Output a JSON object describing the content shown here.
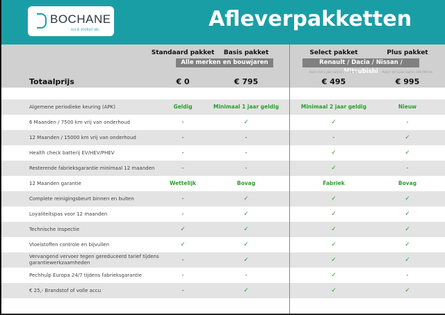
{
  "header": {
    "brand": "BOCHANE",
    "brand_tagline": "ALS JE VOORUIT WIL",
    "title": "Afleverpakketten",
    "brand_color": "#1a9ea6"
  },
  "columns": [
    {
      "name": "Standaard pakket",
      "price": "€ 0"
    },
    {
      "name": "Basis pakket",
      "price": "€ 795"
    },
    {
      "name": "Select pakket",
      "price": "€ 495",
      "note": "Auto's tot 1 jaar oud en 20.000 km"
    },
    {
      "name": "Plus pakket",
      "price": "€ 995",
      "note": "Auto's tot 5 jaar oud en 100.000 km"
    }
  ],
  "bands": {
    "left": "Alle merken en bouwjaren",
    "right": "Renault / Dacia / Nissan / Mitsubishi"
  },
  "total_label": "Totaalprijs",
  "rows": [
    {
      "label": "Algemene periodieke keuring (APK)",
      "values": [
        "Geldig",
        "Minimaal 1 jaar geldig",
        "Minimaal 2 jaar geldig",
        "Nieuw"
      ]
    },
    {
      "label": "6 Maanden / 7500 km vrij van onderhoud",
      "values": [
        "-",
        "✓",
        "✓",
        "-"
      ]
    },
    {
      "label": "12 Maanden / 15000 km vrij van onderhoud",
      "values": [
        "-",
        "-",
        "-",
        "✓"
      ]
    },
    {
      "label": "Health check batterij EV/HEV/PHEV",
      "values": [
        "-",
        "-",
        "✓",
        "✓"
      ]
    },
    {
      "label": "Resterende fabrieksgarantie minimaal 12 maanden",
      "values": [
        "-",
        "-",
        "✓",
        "-"
      ]
    },
    {
      "label": "12 Maanden  garantie",
      "values": [
        "Wettelijk",
        "Bovag",
        "Fabriek",
        "Bovag"
      ]
    },
    {
      "label": "Complete reinigingsbeurt binnen en buiten",
      "values": [
        "-",
        "✓",
        "✓",
        "✓"
      ]
    },
    {
      "label": "Loyaliteitspas voor 12 maanden",
      "values": [
        "-",
        "✓",
        "✓",
        "✓"
      ]
    },
    {
      "label": "Technische inspectie",
      "values": [
        "✓",
        "✓",
        "✓",
        "✓"
      ]
    },
    {
      "label": "Vloeistoffen controle en bijvullen",
      "values": [
        "✓",
        "✓",
        "✓",
        "✓"
      ]
    },
    {
      "label": "Vervangend vervoer tegen gereduceerd tarief tijdens garantiewerkzaamheden",
      "values": [
        "-",
        "✓",
        "✓",
        "✓"
      ]
    },
    {
      "label": "Pechhulp Europa 24/7 tijdens fabrieksgarantie",
      "values": [
        "-",
        "-",
        "✓",
        "-"
      ]
    },
    {
      "label": "€ 25,- Brandstof of  volle accu",
      "values": [
        "-",
        "✓",
        "✓",
        "✓"
      ]
    }
  ]
}
